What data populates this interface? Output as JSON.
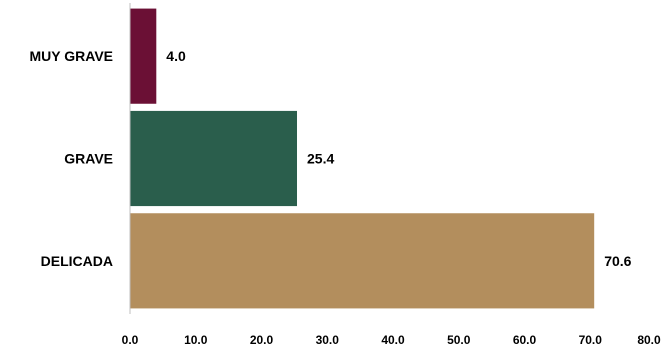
{
  "chart_data": {
    "type": "bar",
    "orientation": "horizontal",
    "title": "",
    "xlabel": "",
    "ylabel": "",
    "categories": [
      "MUY GRAVE",
      "GRAVE",
      "DELICADA"
    ],
    "values": [
      4.0,
      25.4,
      70.6
    ],
    "value_labels": [
      "4.0",
      "25.4",
      "70.6"
    ],
    "colors": [
      "#6b1035",
      "#2a5e4c",
      "#b38e5d"
    ],
    "xlim": [
      0,
      80
    ],
    "ticks": [
      0,
      10,
      20,
      30,
      40,
      50,
      60,
      70,
      80
    ],
    "tick_labels": [
      "0.0",
      "10.0",
      "20.0",
      "30.0",
      "40.0",
      "50.0",
      "60.0",
      "70.0",
      "80.0"
    ],
    "grid": false,
    "legend": "none"
  }
}
